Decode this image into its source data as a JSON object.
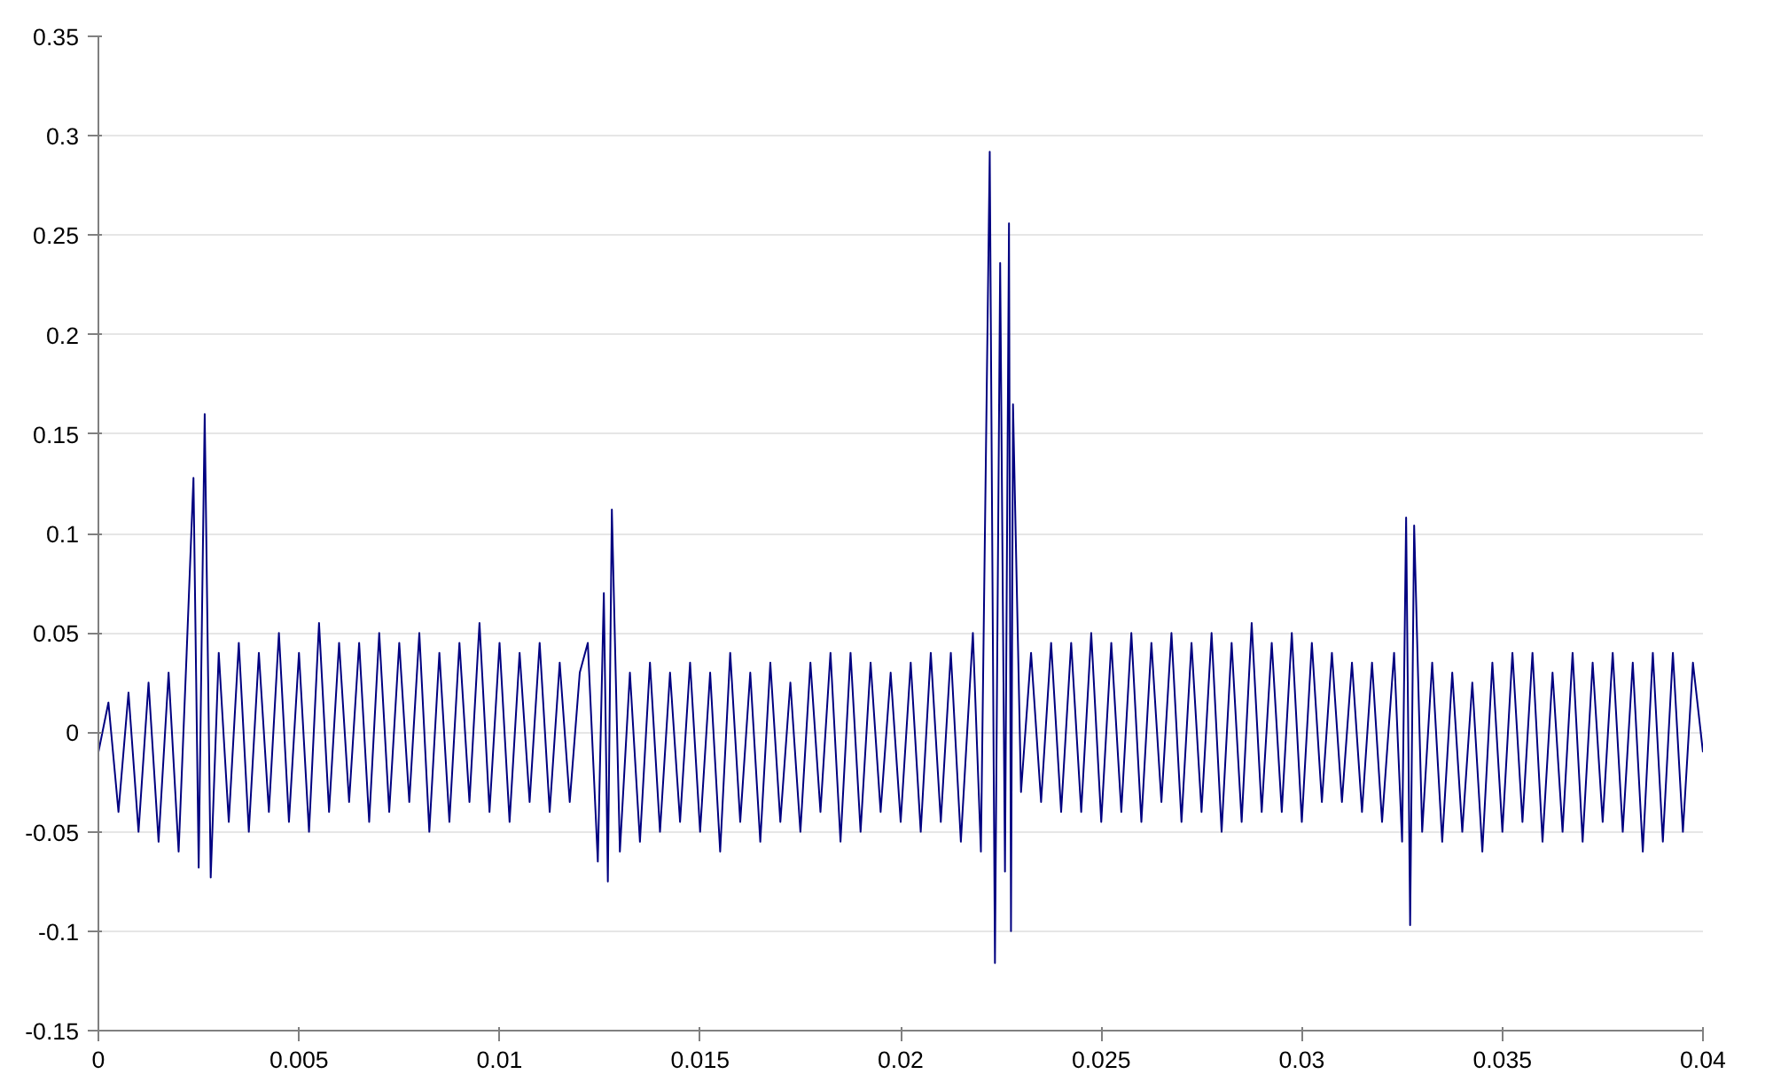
{
  "chart_data": {
    "type": "line",
    "x": [
      0,
      0.00025,
      0.0005,
      0.00075,
      0.001,
      0.00125,
      0.0015,
      0.00175,
      0.002,
      0.0022,
      0.00237,
      0.0025,
      0.00258,
      0.00265,
      0.0028,
      0.003,
      0.00325,
      0.0035,
      0.00375,
      0.004,
      0.00425,
      0.0045,
      0.00475,
      0.005,
      0.00525,
      0.0055,
      0.00575,
      0.006,
      0.00625,
      0.0065,
      0.00675,
      0.007,
      0.00725,
      0.0075,
      0.00775,
      0.008,
      0.00825,
      0.0085,
      0.00875,
      0.009,
      0.00925,
      0.0095,
      0.00975,
      0.01,
      0.01025,
      0.0105,
      0.01075,
      0.011,
      0.01125,
      0.0115,
      0.01175,
      0.012,
      0.0122,
      0.01245,
      0.0126,
      0.0127,
      0.0128,
      0.013,
      0.01325,
      0.0135,
      0.01375,
      0.014,
      0.01425,
      0.0145,
      0.01475,
      0.015,
      0.01525,
      0.0155,
      0.01575,
      0.016,
      0.01625,
      0.0165,
      0.01675,
      0.017,
      0.01725,
      0.0175,
      0.01775,
      0.018,
      0.01825,
      0.0185,
      0.01875,
      0.019,
      0.01925,
      0.0195,
      0.01975,
      0.02,
      0.02025,
      0.0205,
      0.02075,
      0.021,
      0.02125,
      0.0215,
      0.0218,
      0.022,
      0.02222,
      0.02235,
      0.02248,
      0.0226,
      0.0227,
      0.02275,
      0.0228,
      0.023,
      0.02325,
      0.0235,
      0.02375,
      0.024,
      0.02425,
      0.0245,
      0.02475,
      0.025,
      0.02525,
      0.0255,
      0.02575,
      0.026,
      0.02625,
      0.0265,
      0.02675,
      0.027,
      0.02725,
      0.0275,
      0.02775,
      0.028,
      0.02825,
      0.0285,
      0.02875,
      0.029,
      0.02925,
      0.0295,
      0.02975,
      0.03,
      0.03025,
      0.0305,
      0.03075,
      0.031,
      0.03125,
      0.0315,
      0.03175,
      0.032,
      0.0323,
      0.0325,
      0.0326,
      0.0327,
      0.0328,
      0.033,
      0.03325,
      0.0335,
      0.03375,
      0.034,
      0.03425,
      0.0345,
      0.03475,
      0.035,
      0.03525,
      0.0355,
      0.03575,
      0.036,
      0.03625,
      0.0365,
      0.03675,
      0.037,
      0.03725,
      0.0375,
      0.03775,
      0.038,
      0.03825,
      0.0385,
      0.03875,
      0.039,
      0.03925,
      0.0395,
      0.03975,
      0.04
    ],
    "series": [
      {
        "color": "#000080",
        "values": [
          -0.01,
          0.015,
          -0.04,
          0.02,
          -0.05,
          0.025,
          -0.055,
          0.03,
          -0.06,
          0.04,
          0.128,
          -0.068,
          0.055,
          0.16,
          -0.073,
          0.04,
          -0.045,
          0.045,
          -0.05,
          0.04,
          -0.04,
          0.05,
          -0.045,
          0.04,
          -0.05,
          0.055,
          -0.04,
          0.045,
          -0.035,
          0.045,
          -0.045,
          0.05,
          -0.04,
          0.045,
          -0.035,
          0.05,
          -0.05,
          0.04,
          -0.045,
          0.045,
          -0.035,
          0.055,
          -0.04,
          0.045,
          -0.045,
          0.04,
          -0.035,
          0.045,
          -0.04,
          0.035,
          -0.035,
          0.03,
          0.045,
          -0.065,
          0.07,
          -0.075,
          0.112,
          -0.06,
          0.03,
          -0.055,
          0.035,
          -0.05,
          0.03,
          -0.045,
          0.035,
          -0.05,
          0.03,
          -0.06,
          0.04,
          -0.045,
          0.03,
          -0.055,
          0.035,
          -0.045,
          0.025,
          -0.05,
          0.035,
          -0.04,
          0.04,
          -0.055,
          0.04,
          -0.05,
          0.035,
          -0.04,
          0.03,
          -0.045,
          0.035,
          -0.05,
          0.04,
          -0.045,
          0.04,
          -0.055,
          0.05,
          -0.06,
          0.292,
          -0.116,
          0.236,
          -0.07,
          0.256,
          -0.1,
          0.165,
          -0.03,
          0.04,
          -0.035,
          0.045,
          -0.04,
          0.045,
          -0.04,
          0.05,
          -0.045,
          0.045,
          -0.04,
          0.05,
          -0.045,
          0.045,
          -0.035,
          0.05,
          -0.045,
          0.045,
          -0.04,
          0.05,
          -0.05,
          0.045,
          -0.045,
          0.055,
          -0.04,
          0.045,
          -0.04,
          0.05,
          -0.045,
          0.045,
          -0.035,
          0.04,
          -0.035,
          0.035,
          -0.04,
          0.035,
          -0.045,
          0.04,
          -0.055,
          0.108,
          -0.097,
          0.104,
          -0.05,
          0.035,
          -0.055,
          0.03,
          -0.05,
          0.025,
          -0.06,
          0.035,
          -0.05,
          0.04,
          -0.045,
          0.04,
          -0.055,
          0.03,
          -0.05,
          0.04,
          -0.055,
          0.035,
          -0.045,
          0.04,
          -0.05,
          0.035,
          -0.06,
          0.04,
          -0.055,
          0.04,
          -0.05,
          0.035,
          -0.01
        ]
      }
    ],
    "xlim": [
      0,
      0.04
    ],
    "xticks": [
      0,
      0.005,
      0.01,
      0.015,
      0.02,
      0.025,
      0.03,
      0.035,
      0.04
    ],
    "ylim": [
      -0.15,
      0.35
    ],
    "yticks": [
      -0.15,
      -0.1,
      -0.05,
      0,
      0.05,
      0.1,
      0.15,
      0.2,
      0.25,
      0.3,
      0.35
    ],
    "grid": "y",
    "marker": "none",
    "line_style": "solid"
  }
}
